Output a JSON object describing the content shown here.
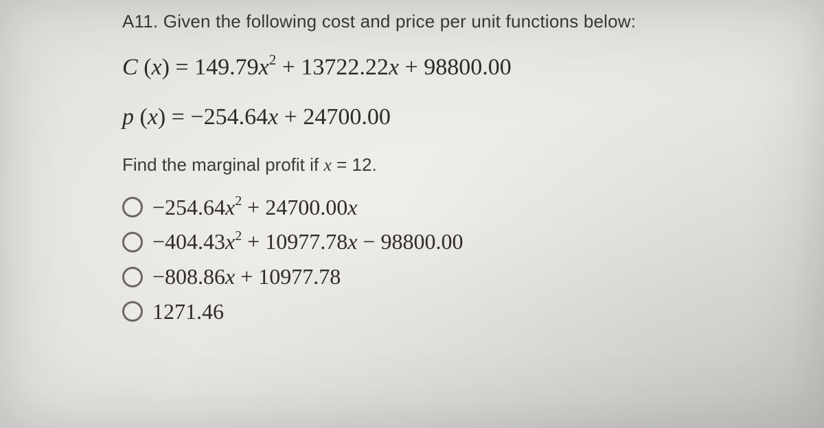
{
  "colors": {
    "page_bg": "#eeece8",
    "text_body": "#3a3a38",
    "text_math": "#2d2b28",
    "radio_border": "#6a6762"
  },
  "typography": {
    "body_family": "sans-serif",
    "math_family": "serif",
    "prompt_size_pt": 20,
    "equation_size_pt": 26,
    "option_size_pt": 24
  },
  "question": {
    "number": "A11.",
    "prompt": "Given the following cost and price per unit functions below:",
    "cost_function": {
      "lhs": "C (x) =",
      "terms": [
        {
          "coef": "149.79",
          "var": "x",
          "power": 2
        },
        {
          "op": "+",
          "coef": "13722.22",
          "var": "x",
          "power": 1
        },
        {
          "op": "+",
          "coef": "98800.00",
          "var": "",
          "power": 0
        }
      ],
      "display": "C (x) = 149.79x² + 13722.22x + 98800.00"
    },
    "price_function": {
      "lhs": "p (x) =",
      "terms": [
        {
          "coef": "−254.64",
          "var": "x",
          "power": 1
        },
        {
          "op": "+",
          "coef": "24700.00",
          "var": "",
          "power": 0
        }
      ],
      "display": "p (x) = −254.64x + 24700.00"
    },
    "instruction_prefix": "Find the marginal profit if ",
    "instruction_var": "x",
    "instruction_eq": " = ",
    "instruction_value": "12",
    "instruction_suffix": "."
  },
  "options": [
    {
      "id": "opt-a",
      "display": "−254.64x² + 24700.00x"
    },
    {
      "id": "opt-b",
      "display": "−404.43x² + 10977.78x − 98800.00"
    },
    {
      "id": "opt-c",
      "display": "−808.86x + 10977.78"
    },
    {
      "id": "opt-d",
      "display": "1271.46"
    }
  ]
}
